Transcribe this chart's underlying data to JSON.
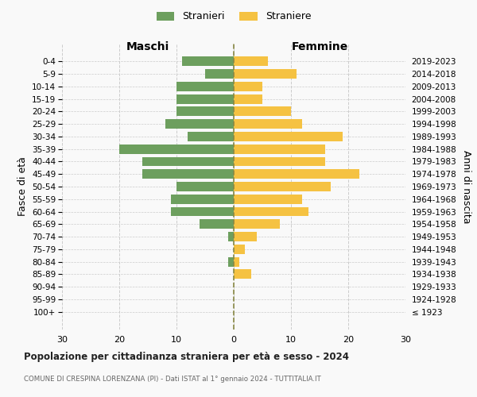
{
  "age_groups": [
    "100+",
    "95-99",
    "90-94",
    "85-89",
    "80-84",
    "75-79",
    "70-74",
    "65-69",
    "60-64",
    "55-59",
    "50-54",
    "45-49",
    "40-44",
    "35-39",
    "30-34",
    "25-29",
    "20-24",
    "15-19",
    "10-14",
    "5-9",
    "0-4"
  ],
  "birth_years": [
    "≤ 1923",
    "1924-1928",
    "1929-1933",
    "1934-1938",
    "1939-1943",
    "1944-1948",
    "1949-1953",
    "1954-1958",
    "1959-1963",
    "1964-1968",
    "1969-1973",
    "1974-1978",
    "1979-1983",
    "1984-1988",
    "1989-1993",
    "1994-1998",
    "1999-2003",
    "2004-2008",
    "2009-2013",
    "2014-2018",
    "2019-2023"
  ],
  "males": [
    0,
    0,
    0,
    0,
    1,
    0,
    1,
    6,
    11,
    11,
    10,
    16,
    16,
    20,
    8,
    12,
    10,
    10,
    10,
    5,
    9
  ],
  "females": [
    0,
    0,
    0,
    3,
    1,
    2,
    4,
    8,
    13,
    12,
    17,
    22,
    16,
    16,
    19,
    12,
    10,
    5,
    5,
    11,
    6
  ],
  "male_color": "#6d9f5e",
  "female_color": "#f5c242",
  "background_color": "#f9f9f9",
  "grid_color": "#cccccc",
  "center_line_color": "#888844",
  "xlim": 30,
  "title": "Popolazione per cittadinanza straniera per età e sesso - 2024",
  "subtitle": "COMUNE DI CRESPINA LORENZANA (PI) - Dati ISTAT al 1° gennaio 2024 - TUTTITALIA.IT",
  "xlabel_left": "Maschi",
  "xlabel_right": "Femmine",
  "ylabel_left": "Fasce di età",
  "ylabel_right": "Anni di nascita",
  "legend_male": "Stranieri",
  "legend_female": "Straniere"
}
